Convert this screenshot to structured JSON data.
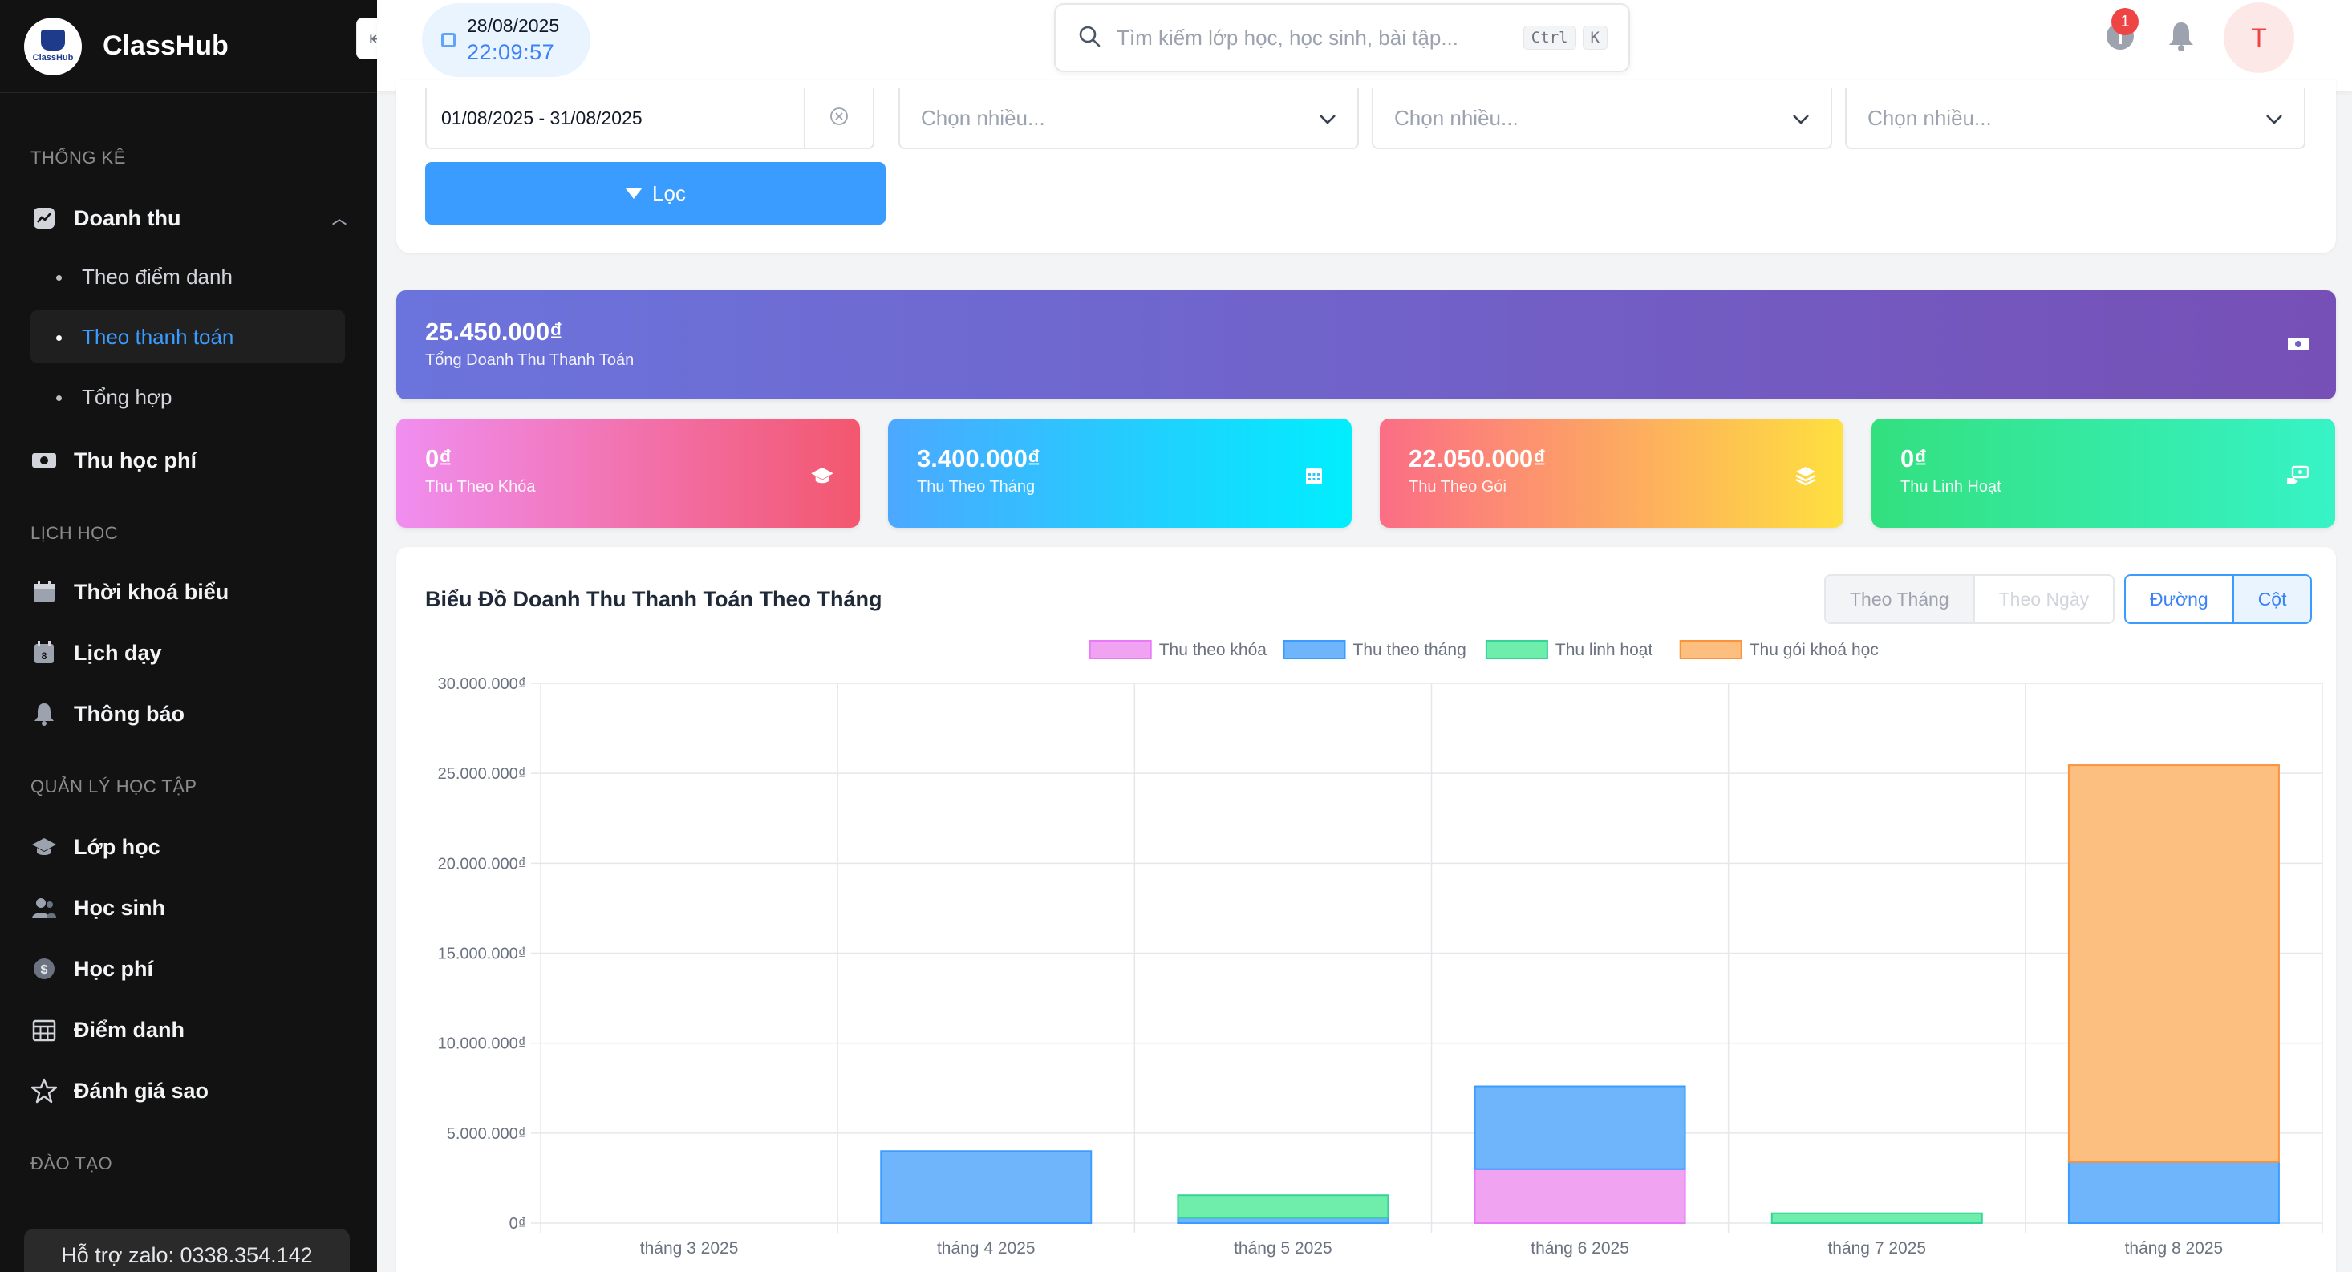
{
  "app": {
    "name": "ClassHub",
    "logo_text": "ClassHub"
  },
  "sidebar": {
    "sections": [
      {
        "title": "THỐNG KÊ"
      },
      {
        "title": "LỊCH HỌC"
      },
      {
        "title": "QUẢN LÝ HỌC TẬP"
      },
      {
        "title": "ĐÀO TẠO"
      }
    ],
    "revenue": {
      "label": "Doanh thu",
      "children": [
        {
          "label": "Theo điểm danh",
          "active": false
        },
        {
          "label": "Theo thanh toán",
          "active": true
        },
        {
          "label": "Tổng hợp",
          "active": false
        }
      ]
    },
    "items": [
      {
        "label": "Thu học phí",
        "icon": "money-icon"
      },
      {
        "label": "Thời khoá biểu",
        "icon": "calendar-icon"
      },
      {
        "label": "Lịch dạy",
        "icon": "calendar-day-icon"
      },
      {
        "label": "Thông báo",
        "icon": "bell-icon"
      },
      {
        "label": "Lớp học",
        "icon": "graduation-cap-icon"
      },
      {
        "label": "Học sinh",
        "icon": "users-icon"
      },
      {
        "label": "Học phí",
        "icon": "dollar-icon"
      },
      {
        "label": "Điểm danh",
        "icon": "grid-calendar-icon"
      },
      {
        "label": "Đánh giá sao",
        "icon": "star-icon"
      }
    ],
    "support": "Hỗ trợ zalo: 0338.354.142"
  },
  "header": {
    "date": "28/08/2025",
    "time": "22:09:57",
    "search_placeholder": "Tìm kiếm lớp học, học sinh, bài tập...",
    "shortcut": [
      "Ctrl",
      "K"
    ],
    "notification_count": "1",
    "avatar_initial": "T"
  },
  "filters": {
    "date_range": "01/08/2025 - 31/08/2025",
    "multi_placeholders": [
      "Chọn nhiều...",
      "Chọn nhiều...",
      "Chọn nhiều..."
    ],
    "filter_button": "Lọc"
  },
  "stats": {
    "total": {
      "amount": "25.450.000₫",
      "label": "Tổng Doanh Thu Thanh Toán"
    },
    "cards": [
      {
        "amount": "0₫",
        "label": "Thu Theo Khóa",
        "icon": "graduation-cap-icon"
      },
      {
        "amount": "3.400.000₫",
        "label": "Thu Theo Tháng",
        "icon": "calendar-icon"
      },
      {
        "amount": "22.050.000₫",
        "label": "Thu Theo Gói",
        "icon": "layers-icon"
      },
      {
        "amount": "0₫",
        "label": "Thu Linh Hoạt",
        "icon": "money-hand-icon"
      }
    ]
  },
  "chart_card": {
    "title": "Biểu Đồ Doanh Thu Thanh Toán Theo Tháng",
    "period_options": [
      "Theo Tháng",
      "Theo Ngày"
    ],
    "type_options": [
      "Đường",
      "Cột"
    ]
  },
  "colors": {
    "pink": "#f0a3f0",
    "blue": "#6eb5fb",
    "green": "#6eeeaa",
    "orange": "#fdbf80",
    "pink_stroke": "#e879f9",
    "blue_stroke": "#3b9cff",
    "green_stroke": "#34d399",
    "orange_stroke": "#fb923c"
  },
  "chart_data": {
    "type": "bar",
    "stacked": true,
    "categories": [
      "tháng 3 2025",
      "tháng 4 2025",
      "tháng 5 2025",
      "tháng 6 2025",
      "tháng 7 2025",
      "tháng 8 2025"
    ],
    "series": [
      {
        "name": "Thu theo khóa",
        "color": "#f0a3f0",
        "values": [
          0,
          0,
          0,
          3000000,
          0,
          0
        ]
      },
      {
        "name": "Thu theo tháng",
        "color": "#6eb5fb",
        "values": [
          0,
          4000000,
          300000,
          4600000,
          0,
          3400000
        ]
      },
      {
        "name": "Thu linh hoạt",
        "color": "#6eeeaa",
        "values": [
          0,
          0,
          1250000,
          0,
          550000,
          0
        ]
      },
      {
        "name": "Thu gói khoá học",
        "color": "#fdbf80",
        "values": [
          0,
          0,
          0,
          0,
          0,
          22050000
        ]
      }
    ],
    "ylim": [
      0,
      30000000
    ],
    "yticks": [
      0,
      5000000,
      10000000,
      15000000,
      20000000,
      25000000,
      30000000
    ],
    "ytick_labels": [
      "0₫",
      "5.000.000₫",
      "10.000.000₫",
      "15.000.000₫",
      "20.000.000₫",
      "25.000.000₫",
      "30.000.000₫"
    ],
    "legend_position": "top-center",
    "grid": true
  }
}
